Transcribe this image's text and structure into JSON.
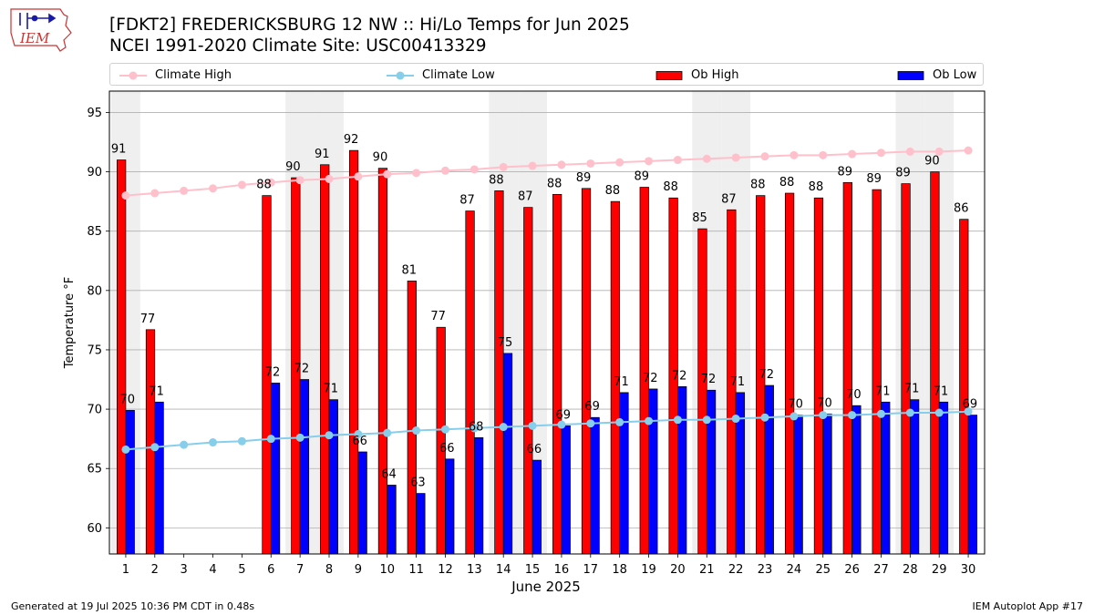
{
  "header": {
    "title_line1": "[FDKT2] FREDERICKSBURG 12 NW :: Hi/Lo Temps for Jun 2025",
    "title_line2": "NCEI 1991-2020 Climate Site: USC00413329",
    "logo_text": "IEM"
  },
  "legend": {
    "items": [
      {
        "label": "Climate High",
        "color": "#ffc0cb",
        "kind": "line"
      },
      {
        "label": "Climate Low",
        "color": "#87ceeb",
        "kind": "line"
      },
      {
        "label": "Ob High",
        "color": "#ff0000",
        "kind": "bar"
      },
      {
        "label": "Ob Low",
        "color": "#0000ff",
        "kind": "bar"
      }
    ]
  },
  "footer": {
    "left": "Generated at 19 Jul 2025 10:36 PM CDT in 0.48s",
    "right": "IEM Autoplot App #17"
  },
  "chart_data": {
    "type": "bar",
    "title": "[FDKT2] FREDERICKSBURG 12 NW :: Hi/Lo Temps for Jun 2025",
    "xlabel": "June 2025",
    "ylabel": "Temperature °F",
    "ylim": [
      57.8,
      96.8
    ],
    "yticks": [
      60,
      65,
      70,
      75,
      80,
      85,
      90,
      95
    ],
    "grid": true,
    "legend_position": "top",
    "categories": [
      "1",
      "2",
      "3",
      "4",
      "5",
      "6",
      "7",
      "8",
      "9",
      "10",
      "11",
      "12",
      "13",
      "14",
      "15",
      "16",
      "17",
      "18",
      "19",
      "20",
      "21",
      "22",
      "23",
      "24",
      "25",
      "26",
      "27",
      "28",
      "29",
      "30"
    ],
    "weekend_days": [
      1,
      7,
      8,
      14,
      15,
      21,
      22,
      28,
      29
    ],
    "series": [
      {
        "name": "Ob High",
        "color": "#ff0000",
        "values": [
          91,
          76.7,
          null,
          null,
          null,
          88,
          89.5,
          90.6,
          91.8,
          90.3,
          80.8,
          76.9,
          86.7,
          88.4,
          87,
          88.1,
          88.6,
          87.5,
          88.7,
          87.8,
          85.2,
          86.8,
          88,
          88.2,
          87.8,
          89.1,
          88.5,
          89,
          90,
          86
        ],
        "labels": [
          "91",
          "77",
          "",
          "",
          "",
          "88",
          "90",
          "91",
          "92",
          "90",
          "81",
          "77",
          "87",
          "88",
          "87",
          "88",
          "89",
          "88",
          "89",
          "88",
          "85",
          "87",
          "88",
          "88",
          "88",
          "89",
          "89",
          "89",
          "90",
          "86"
        ]
      },
      {
        "name": "Ob Low",
        "color": "#0000ff",
        "values": [
          69.9,
          70.6,
          null,
          null,
          null,
          72.2,
          72.5,
          70.8,
          66.4,
          63.6,
          62.9,
          65.8,
          67.6,
          74.7,
          65.7,
          68.6,
          69.3,
          71.4,
          71.7,
          71.9,
          71.6,
          71.4,
          72,
          69.5,
          69.6,
          70.3,
          70.6,
          70.8,
          70.6,
          69.5
        ],
        "labels": [
          "70",
          "71",
          "",
          "",
          "",
          "72",
          "72",
          "71",
          "66",
          "64",
          "63",
          "66",
          "68",
          "75",
          "66",
          "69",
          "69",
          "71",
          "72",
          "72",
          "72",
          "71",
          "72",
          "70",
          "70",
          "70",
          "71",
          "71",
          "71",
          "69"
        ]
      },
      {
        "name": "Climate High",
        "color": "#ffc0cb",
        "values": [
          88.0,
          88.2,
          88.4,
          88.6,
          88.9,
          89.1,
          89.3,
          89.4,
          89.6,
          89.8,
          89.9,
          90.1,
          90.2,
          90.4,
          90.5,
          90.6,
          90.7,
          90.8,
          90.9,
          91.0,
          91.1,
          91.2,
          91.3,
          91.4,
          91.4,
          91.5,
          91.6,
          91.7,
          91.7,
          91.8
        ]
      },
      {
        "name": "Climate Low",
        "color": "#87ceeb",
        "values": [
          66.6,
          66.8,
          67.0,
          67.2,
          67.3,
          67.5,
          67.6,
          67.8,
          67.9,
          68.0,
          68.2,
          68.3,
          68.4,
          68.5,
          68.6,
          68.7,
          68.8,
          68.9,
          69.0,
          69.1,
          69.1,
          69.2,
          69.3,
          69.4,
          69.5,
          69.5,
          69.6,
          69.7,
          69.7,
          69.8
        ]
      }
    ]
  }
}
